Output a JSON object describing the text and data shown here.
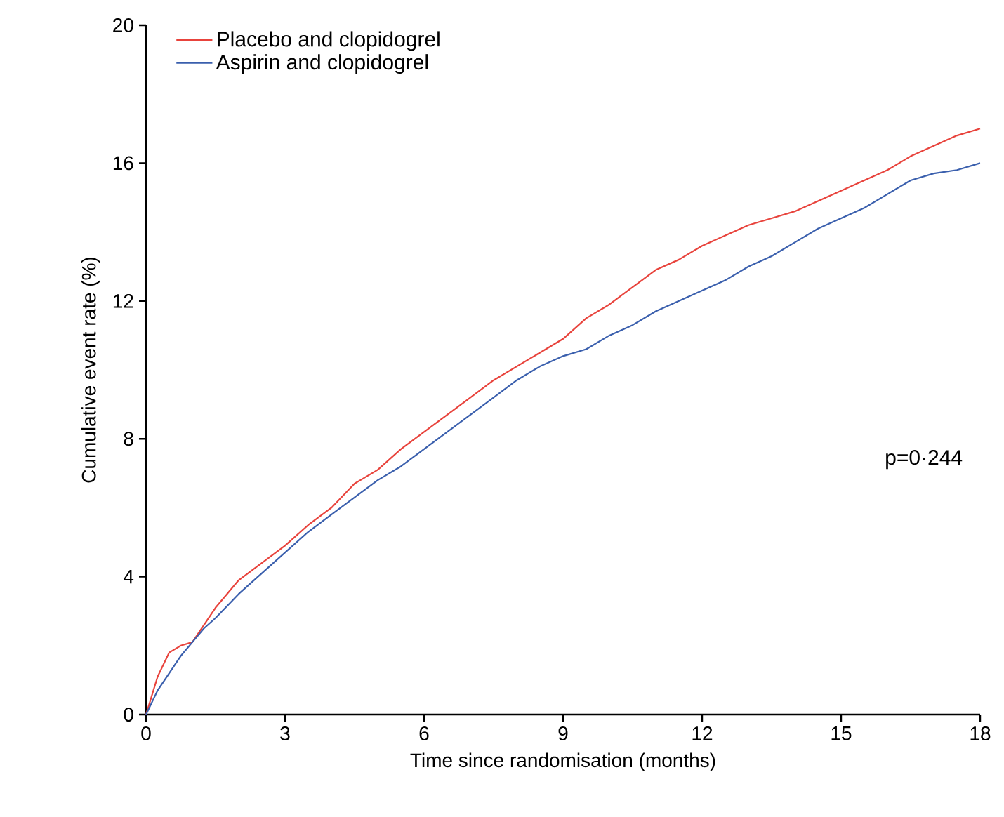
{
  "chart_data": {
    "type": "line",
    "xlabel": "Time since randomisation (months)",
    "ylabel": "Cumulative event rate (%)",
    "xlim": [
      0,
      18
    ],
    "ylim": [
      0,
      20
    ],
    "xticks": [
      0,
      3,
      6,
      9,
      12,
      15,
      18
    ],
    "yticks": [
      0,
      4,
      8,
      12,
      16,
      20
    ],
    "legend": "top left",
    "grid": false,
    "marker": "none",
    "line_style": "solid",
    "annotations": [
      "p=0·244"
    ],
    "series": [
      {
        "name": "Placebo and clopidogrel",
        "color": "#e8433c",
        "x": [
          0,
          0.25,
          0.5,
          0.75,
          1,
          1.25,
          1.5,
          2,
          2.5,
          3,
          3.5,
          4,
          4.5,
          5,
          5.5,
          6,
          6.5,
          7,
          7.5,
          8,
          8.5,
          9,
          9.5,
          10,
          10.5,
          11,
          11.5,
          12,
          12.5,
          13,
          13.5,
          14,
          14.5,
          15,
          15.5,
          16,
          16.5,
          17,
          17.5,
          18
        ],
        "values": [
          0,
          1.1,
          1.8,
          2.0,
          2.1,
          2.6,
          3.1,
          3.9,
          4.4,
          4.9,
          5.5,
          6.0,
          6.7,
          7.1,
          7.7,
          8.2,
          8.7,
          9.2,
          9.7,
          10.1,
          10.5,
          10.9,
          11.5,
          11.9,
          12.4,
          12.9,
          13.2,
          13.6,
          13.9,
          14.2,
          14.4,
          14.6,
          14.9,
          15.2,
          15.5,
          15.8,
          16.2,
          16.5,
          16.8,
          17.0
        ]
      },
      {
        "name": "Aspirin and clopidogrel",
        "color": "#3a5fad",
        "x": [
          0,
          0.25,
          0.5,
          0.75,
          1,
          1.25,
          1.5,
          2,
          2.5,
          3,
          3.5,
          4,
          4.5,
          5,
          5.5,
          6,
          6.5,
          7,
          7.5,
          8,
          8.5,
          9,
          9.5,
          10,
          10.5,
          11,
          11.5,
          12,
          12.5,
          13,
          13.5,
          14,
          14.5,
          15,
          15.5,
          16,
          16.5,
          17,
          17.5,
          18
        ],
        "values": [
          0,
          0.7,
          1.2,
          1.7,
          2.1,
          2.5,
          2.8,
          3.5,
          4.1,
          4.7,
          5.3,
          5.8,
          6.3,
          6.8,
          7.2,
          7.7,
          8.2,
          8.7,
          9.2,
          9.7,
          10.1,
          10.4,
          10.6,
          11.0,
          11.3,
          11.7,
          12.0,
          12.3,
          12.6,
          13.0,
          13.3,
          13.7,
          14.1,
          14.4,
          14.7,
          15.1,
          15.5,
          15.7,
          15.8,
          16.0
        ]
      }
    ]
  }
}
